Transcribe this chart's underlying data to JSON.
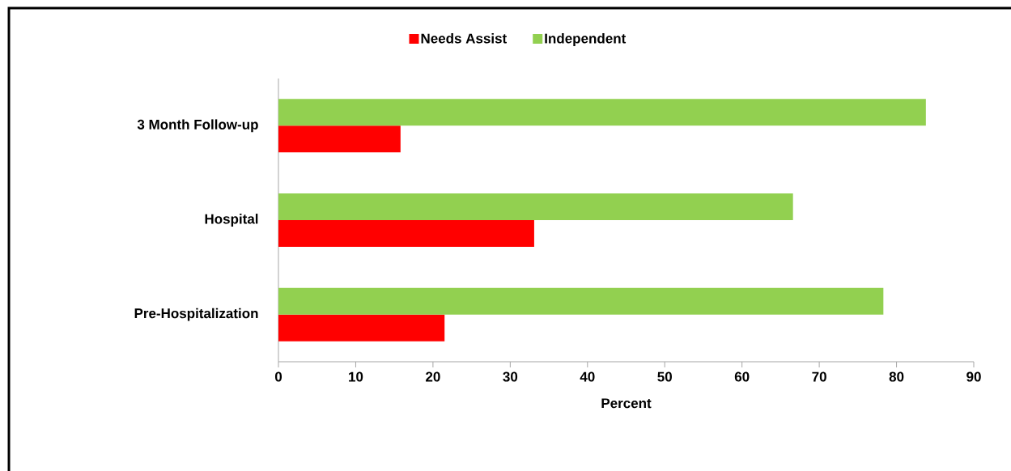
{
  "chart_data": {
    "type": "bar",
    "orientation": "horizontal",
    "xlabel": "Percent",
    "categories": [
      "3 Month Follow-up",
      "Hospital",
      "Pre-Hospitalization"
    ],
    "series": [
      {
        "name": "Needs Assist",
        "color": "#ff0000",
        "values": [
          15.8,
          33.1,
          21.5
        ]
      },
      {
        "name": "Independent",
        "color": "#92d050",
        "values": [
          83.8,
          66.6,
          78.3
        ]
      }
    ],
    "xlim": [
      0,
      90
    ],
    "xticks": [
      0,
      10,
      20,
      30,
      40,
      50,
      60,
      70,
      80,
      90
    ],
    "grid": false,
    "legend": "top"
  }
}
